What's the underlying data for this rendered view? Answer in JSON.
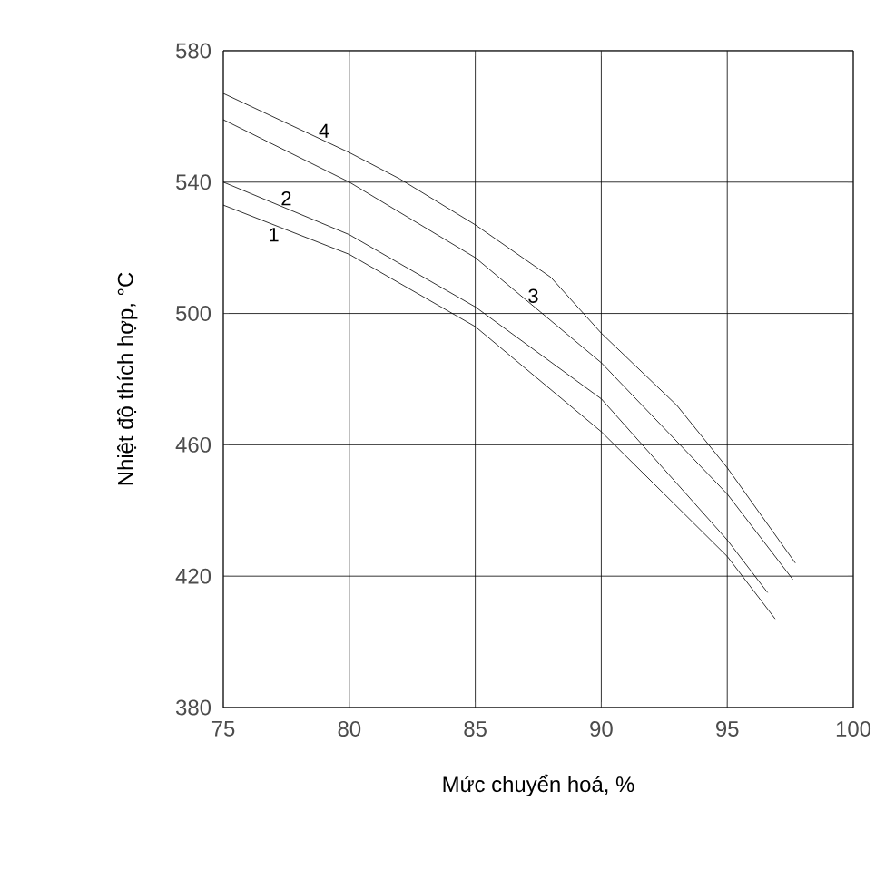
{
  "chart_data": {
    "type": "line",
    "xlabel": "Mức chuyển hoá, %",
    "ylabel": "Nhiệt độ thích hợp, °C",
    "xlim": [
      75,
      100
    ],
    "ylim": [
      380,
      580
    ],
    "xticks": [
      75,
      80,
      85,
      90,
      95,
      100
    ],
    "yticks": [
      380,
      420,
      460,
      500,
      540,
      580
    ],
    "grid": true,
    "line_style": "solid",
    "marker": "none",
    "series": [
      {
        "name": "1",
        "color": "#000000",
        "x": [
          75,
          80,
          85,
          90,
          95,
          96.9
        ],
        "values": [
          533,
          518,
          496,
          464,
          426,
          407
        ]
      },
      {
        "name": "2",
        "color": "#000000",
        "x": [
          75,
          80,
          85,
          90,
          95,
          96.6
        ],
        "values": [
          540,
          524,
          502,
          474,
          431,
          415
        ]
      },
      {
        "name": "3",
        "color": "#000000",
        "x": [
          75,
          80,
          85,
          90,
          95,
          97.6
        ],
        "values": [
          559,
          540,
          517,
          485,
          445,
          419
        ]
      },
      {
        "name": "4",
        "color": "#000000",
        "x": [
          75,
          80,
          82,
          85,
          88,
          90,
          93,
          95,
          97.7
        ],
        "values": [
          567,
          549,
          541,
          527,
          511,
          494,
          472,
          453,
          424
        ]
      }
    ]
  }
}
